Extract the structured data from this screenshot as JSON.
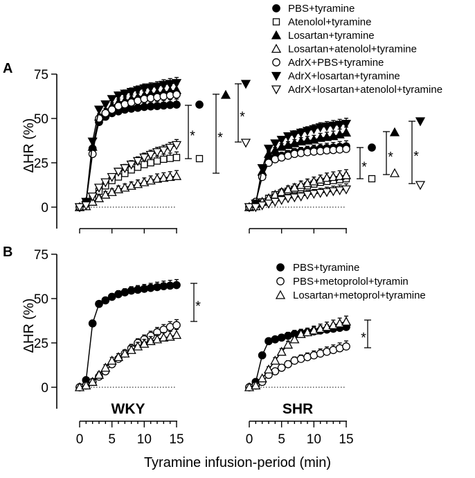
{
  "chart_data": [
    {
      "type": "line",
      "panel": "A",
      "group": "WKY",
      "xlabel": "Tyramine infusion-period (min)",
      "ylabel": "ΔHR (%)",
      "xlim": [
        -1,
        15
      ],
      "ylim": [
        -5,
        75
      ],
      "xticks": [
        "0",
        "5",
        "10",
        "15"
      ],
      "yticks": [
        "0",
        "25",
        "50",
        "75"
      ],
      "x": [
        0,
        1,
        2,
        3,
        4,
        5,
        6,
        7,
        8,
        9,
        10,
        11,
        12,
        13,
        14,
        15
      ],
      "series": [
        {
          "name": "PBS+tyramine",
          "marker": "filled-circle",
          "values": [
            0,
            3,
            33,
            48,
            51,
            53,
            54,
            55,
            55.5,
            56,
            56.5,
            56.8,
            57,
            57.3,
            57.6,
            57.8
          ]
        },
        {
          "name": "Atenolol+tyramine",
          "marker": "open-square",
          "values": [
            0,
            1,
            5,
            9,
            12,
            15,
            17,
            19,
            21,
            22.5,
            24,
            25,
            26,
            27,
            27.5,
            28
          ]
        },
        {
          "name": "Losartan+tyramine",
          "marker": "filled-triangle",
          "values": [
            0,
            3,
            34,
            51,
            54,
            57,
            59,
            60,
            61,
            62,
            63,
            64,
            64.5,
            65,
            65.5,
            66
          ]
        },
        {
          "name": "Losartan+atenolol+tyramine",
          "marker": "open-triangle",
          "values": [
            0,
            0.5,
            3,
            5,
            7,
            8.5,
            10,
            11,
            12,
            13,
            14,
            15,
            16,
            16.5,
            17,
            17.5
          ]
        },
        {
          "name": "AdrX+PBS+tyramine",
          "marker": "open-circle",
          "values": [
            0,
            3,
            30,
            50,
            53,
            55,
            57,
            58,
            59,
            60,
            61,
            61.5,
            62,
            62.5,
            63,
            63.5
          ]
        },
        {
          "name": "AdrX+losartan+tyramine",
          "marker": "filled-down-triangle",
          "values": [
            0,
            3,
            37,
            55,
            58,
            61,
            63,
            64,
            65,
            66,
            67,
            67.5,
            68,
            69,
            69.5,
            70
          ]
        },
        {
          "name": "AdrX+losartan+atenolol+tyramine",
          "marker": "open-down-triangle",
          "values": [
            0,
            1,
            6,
            11,
            14,
            17,
            20,
            22,
            24,
            26,
            28,
            29.5,
            31,
            32,
            33.5,
            35
          ]
        }
      ],
      "annotations": [
        "*",
        "*",
        "*"
      ]
    },
    {
      "type": "line",
      "panel": "A",
      "group": "SHR",
      "xlim": [
        -1,
        15
      ],
      "ylim": [
        -5,
        75
      ],
      "xticks": [
        "0",
        "5",
        "10",
        "15"
      ],
      "x": [
        0,
        1,
        2,
        3,
        4,
        5,
        6,
        7,
        8,
        9,
        10,
        11,
        12,
        13,
        14,
        15
      ],
      "series": [
        {
          "name": "PBS+tyramine",
          "marker": "filled-circle",
          "values": [
            0,
            3,
            18,
            26,
            28,
            29,
            30,
            31,
            31.5,
            32,
            32.5,
            33,
            33.3,
            33.6,
            34,
            34.3
          ]
        },
        {
          "name": "Atenolol+tyramine",
          "marker": "open-square",
          "values": [
            0,
            0.5,
            3,
            5,
            7,
            8,
            9,
            10,
            11,
            12,
            13,
            14,
            14.5,
            15,
            15.5,
            16
          ]
        },
        {
          "name": "Losartan+tyramine",
          "marker": "filled-triangle",
          "values": [
            0,
            2,
            20,
            30,
            32,
            34,
            35,
            36,
            37,
            37.5,
            38,
            39,
            39.5,
            40,
            41,
            42
          ]
        },
        {
          "name": "Losartan+atenolol+tyramine",
          "marker": "open-triangle",
          "values": [
            0,
            0.5,
            3,
            5,
            7,
            8.5,
            10,
            11,
            12.5,
            13.5,
            14.5,
            15.5,
            16.5,
            17,
            17.5,
            18
          ]
        },
        {
          "name": "AdrX+PBS+tyramine",
          "marker": "open-circle",
          "values": [
            0,
            3,
            17,
            25,
            27,
            28,
            29,
            30,
            30.5,
            31,
            31.3,
            31.6,
            32,
            32.2,
            32.5,
            32.8
          ]
        },
        {
          "name": "AdrX+losartan+tyramine",
          "marker": "filled-down-triangle",
          "values": [
            0,
            2,
            22,
            33,
            36,
            38,
            40,
            41,
            42,
            43,
            44,
            45,
            45.5,
            46,
            46.5,
            47
          ]
        },
        {
          "name": "AdrX+losartan+atenolol+tyramine",
          "marker": "open-down-triangle",
          "values": [
            0,
            0,
            1,
            2,
            3,
            4,
            5,
            5.5,
            6,
            7,
            7.5,
            8,
            8.5,
            9,
            9.5,
            10
          ]
        }
      ],
      "annotations": [
        "*",
        "*",
        "*"
      ]
    },
    {
      "type": "line",
      "panel": "B",
      "group": "WKY",
      "xlabel": "Tyramine infusion-period (min)",
      "ylabel": "ΔHR (%)",
      "xlim": [
        -1,
        15
      ],
      "ylim": [
        -5,
        75
      ],
      "xticks": [
        "0",
        "5",
        "10",
        "15"
      ],
      "yticks": [
        "0",
        "25",
        "50",
        "75"
      ],
      "x": [
        0,
        1,
        2,
        3,
        4,
        5,
        6,
        7,
        8,
        9,
        10,
        11,
        12,
        13,
        14,
        15
      ],
      "series": [
        {
          "name": "PBS+tyramine",
          "marker": "filled-circle",
          "values": [
            0,
            4,
            36,
            47,
            49,
            51,
            52.5,
            53.5,
            54.5,
            55,
            55.5,
            56,
            56.5,
            57,
            57.3,
            57.6
          ]
        },
        {
          "name": "PBS+metoprolol+tyramin",
          "marker": "open-circle",
          "values": [
            0,
            1,
            3,
            6,
            9,
            13,
            16,
            19,
            22,
            25,
            27,
            29,
            31,
            32.5,
            34,
            35
          ]
        },
        {
          "name": "Losartan+metoprol+tyramine",
          "marker": "open-triangle",
          "values": [
            0,
            1,
            3,
            7,
            11,
            15,
            17,
            19,
            21,
            23,
            24.5,
            26,
            27,
            28,
            28.5,
            29.5
          ]
        }
      ],
      "annotations": [
        "*"
      ]
    },
    {
      "type": "line",
      "panel": "B",
      "group": "SHR",
      "xlim": [
        -1,
        15
      ],
      "ylim": [
        -5,
        75
      ],
      "xticks": [
        "0",
        "5",
        "10",
        "15"
      ],
      "x": [
        0,
        1,
        2,
        3,
        4,
        5,
        6,
        7,
        8,
        9,
        10,
        11,
        12,
        13,
        14,
        15
      ],
      "series": [
        {
          "name": "PBS+tyramine",
          "marker": "filled-circle",
          "values": [
            0,
            3,
            18,
            26,
            27,
            28,
            29,
            30,
            30.5,
            31,
            31.5,
            32,
            32.5,
            33,
            33.5,
            34
          ]
        },
        {
          "name": "PBS+metoprolol+tyramin",
          "marker": "open-circle",
          "values": [
            0,
            1,
            3,
            7,
            9,
            11,
            13,
            15,
            16,
            17,
            18,
            19,
            20,
            21,
            22,
            23
          ]
        },
        {
          "name": "Losartan+metoprol+tyramine",
          "marker": "open-triangle",
          "values": [
            0,
            1,
            5,
            10,
            15,
            20,
            24,
            27,
            30,
            31,
            32,
            33,
            34,
            35,
            36,
            37
          ]
        }
      ],
      "annotations": [
        "*"
      ]
    }
  ],
  "labels": {
    "panel_a": "A",
    "panel_b": "B",
    "ylabel_a": "ΔHR (%)",
    "ylabel_b": "ΔHR (%)",
    "xlabel": "Tyramine infusion-period (min)",
    "group_left": "WKY",
    "group_right": "SHR",
    "yticks": [
      "0",
      "25",
      "50",
      "75"
    ],
    "xticks": [
      "0",
      "5",
      "10",
      "15"
    ],
    "star": "*"
  },
  "legend_a": [
    {
      "label": "PBS+tyramine",
      "marker": "filled-circle"
    },
    {
      "label": "Atenolol+tyramine",
      "marker": "open-square"
    },
    {
      "label": "Losartan+tyramine",
      "marker": "filled-triangle"
    },
    {
      "label": "Losartan+atenolol+tyramine",
      "marker": "open-triangle"
    },
    {
      "label": "AdrX+PBS+tyramine",
      "marker": "open-circle"
    },
    {
      "label": "AdrX+losartan+tyramine",
      "marker": "filled-down-triangle"
    },
    {
      "label": "AdrX+losartan+atenolol+tyramine",
      "marker": "open-down-triangle"
    }
  ],
  "legend_b": [
    {
      "label": "PBS+tyramine",
      "marker": "filled-circle"
    },
    {
      "label": "PBS+metoprolol+tyramin",
      "marker": "open-circle"
    },
    {
      "label": "Losartan+metoprol+tyramine",
      "marker": "open-triangle"
    }
  ]
}
